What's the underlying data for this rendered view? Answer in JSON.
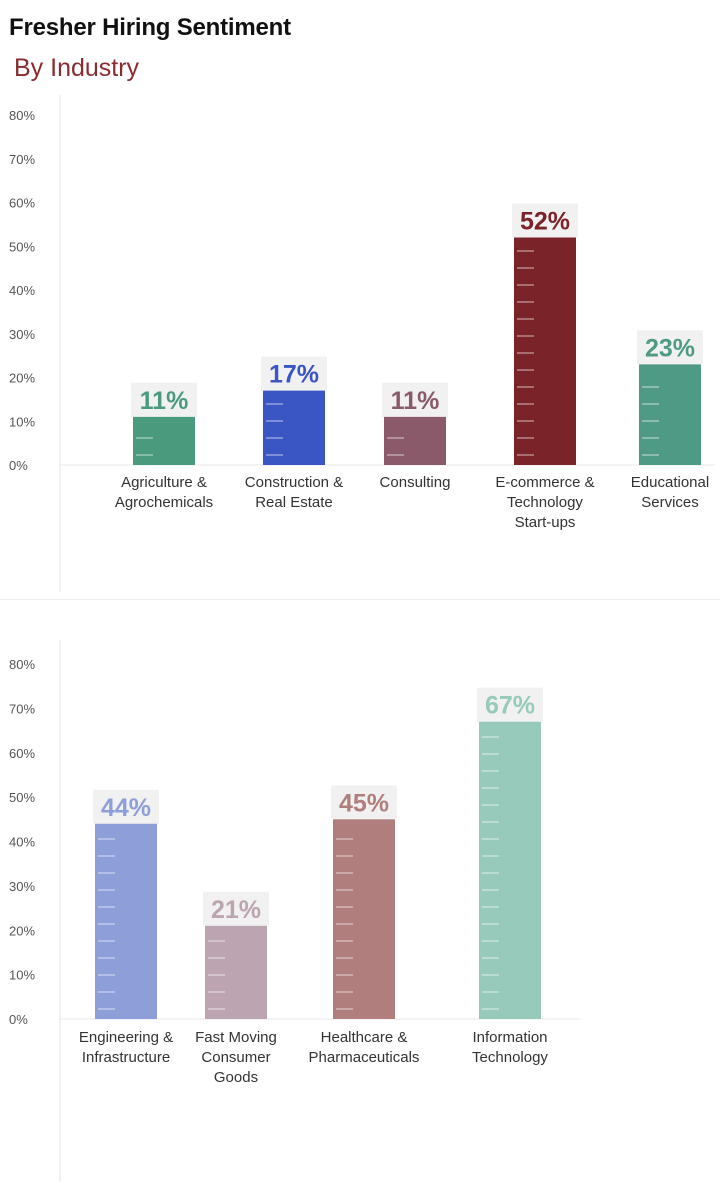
{
  "title": "Fresher Hiring Sentiment",
  "subtitle": "By Industry",
  "chart_data": [
    {
      "type": "bar",
      "title": "Fresher Hiring Sentiment",
      "subtitle": "By Industry",
      "ylim": [
        0,
        80
      ],
      "yticks": [
        "0%",
        "10%",
        "20%",
        "30%",
        "40%",
        "50%",
        "60%",
        "70%",
        "80%"
      ],
      "grid": false,
      "categories": [
        [
          "Agriculture &",
          "Agrochemicals"
        ],
        [
          "Construction &",
          "Real Estate"
        ],
        [
          "Consulting"
        ],
        [
          "E-commerce &",
          "Technology",
          "Start-ups"
        ],
        [
          "Educational",
          "Services"
        ]
      ],
      "values": [
        11,
        17,
        11,
        52,
        23
      ],
      "value_labels": [
        "11%",
        "17%",
        "11%",
        "52%",
        "23%"
      ],
      "colors": [
        "#4a9a7e",
        "#3a55c4",
        "#8a5a6a",
        "#7a2328",
        "#4f9a84"
      ]
    },
    {
      "type": "bar",
      "ylim": [
        0,
        80
      ],
      "yticks": [
        "0%",
        "10%",
        "20%",
        "30%",
        "40%",
        "50%",
        "60%",
        "70%",
        "80%"
      ],
      "grid": false,
      "categories": [
        [
          "Engineering &",
          "Infrastructure"
        ],
        [
          "Fast Moving",
          "Consumer",
          "Goods"
        ],
        [
          "Healthcare &",
          "Pharmaceuticals"
        ],
        [
          "Information",
          "Technology"
        ]
      ],
      "values": [
        44,
        21,
        45,
        67
      ],
      "value_labels": [
        "44%",
        "21%",
        "45%",
        "67%"
      ],
      "colors": [
        "#8e9ed8",
        "#bca4b0",
        "#b07e7c",
        "#98cabb"
      ]
    }
  ]
}
